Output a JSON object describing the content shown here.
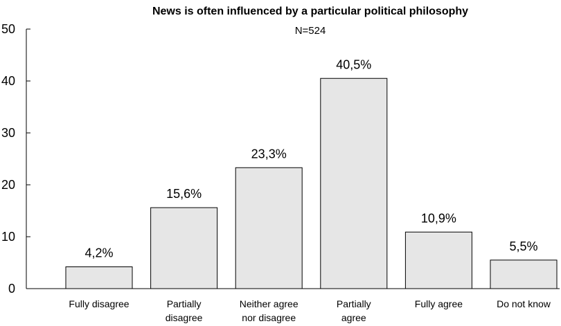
{
  "chart_data": {
    "type": "bar",
    "title": "News is often influenced by a particular political philosophy",
    "subtitle": "N=524",
    "categories": [
      [
        "Fully disagree"
      ],
      [
        "Partially",
        "disagree"
      ],
      [
        "Neither agree",
        "nor disagree"
      ],
      [
        "Partially",
        "agree"
      ],
      [
        "Fully agree"
      ],
      [
        "Do not know"
      ]
    ],
    "values": [
      4.2,
      15.6,
      23.3,
      40.5,
      10.9,
      5.5
    ],
    "data_labels": [
      "4,2%",
      "15,6%",
      "23,3%",
      "40,5%",
      "10,9%",
      "5,5%"
    ],
    "yticks": [
      "0",
      "10",
      "20",
      "30",
      "40",
      "50"
    ],
    "ylim": [
      0,
      50
    ],
    "xlabel": "",
    "ylabel": "",
    "grid": false,
    "bar_color": "#e6e6e6"
  }
}
